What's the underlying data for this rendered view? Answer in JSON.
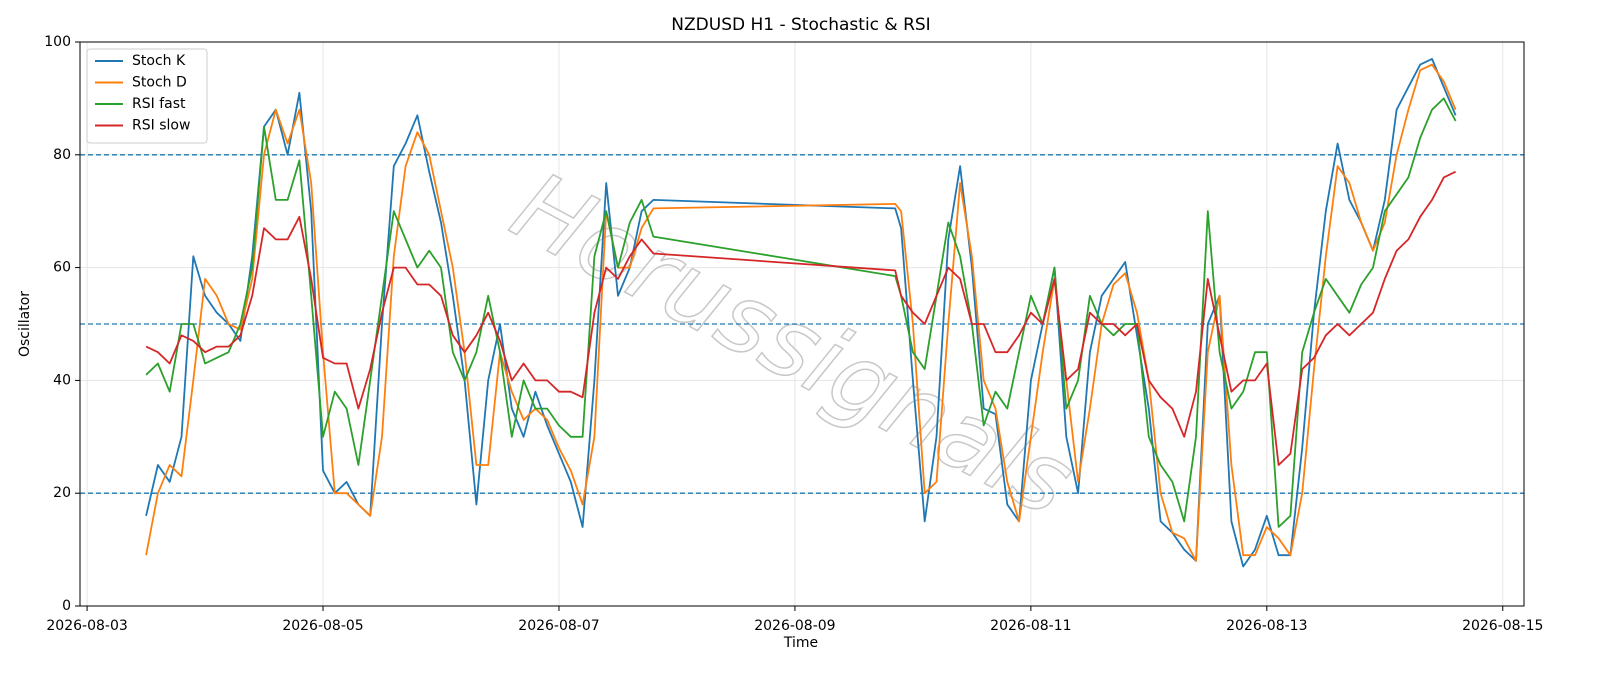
{
  "chart_data": {
    "type": "line",
    "title": "NZDUSD H1 - Stochastic & RSI",
    "xlabel": "Time",
    "ylabel": "Oscillator",
    "watermark": "Horussignals",
    "xlim": [
      -0.06,
      12.18
    ],
    "ylim": [
      0,
      100
    ],
    "xticks": [
      {
        "value": 0,
        "label": "2026-08-03"
      },
      {
        "value": 2,
        "label": "2026-08-05"
      },
      {
        "value": 4,
        "label": "2026-08-07"
      },
      {
        "value": 6,
        "label": "2026-08-09"
      },
      {
        "value": 8,
        "label": "2026-08-11"
      },
      {
        "value": 10,
        "label": "2026-08-13"
      },
      {
        "value": 12,
        "label": "2026-08-15"
      }
    ],
    "yticks": [
      0,
      20,
      40,
      60,
      80,
      100
    ],
    "grid": true,
    "legend": "upper left",
    "hlines": [
      20,
      50,
      80
    ],
    "hline_color": "#1f77b4",
    "x": [
      0.5,
      0.6,
      0.7,
      0.8,
      0.9,
      1.0,
      1.1,
      1.2,
      1.3,
      1.4,
      1.5,
      1.6,
      1.7,
      1.8,
      1.9,
      2.0,
      2.1,
      2.2,
      2.3,
      2.4,
      2.5,
      2.6,
      2.7,
      2.8,
      2.9,
      3.0,
      3.1,
      3.2,
      3.3,
      3.4,
      3.5,
      3.6,
      3.7,
      3.8,
      3.9,
      4.0,
      4.1,
      4.2,
      4.3,
      4.4,
      4.5,
      4.6,
      4.7,
      4.8,
      6.85,
      6.9,
      7.0,
      7.1,
      7.2,
      7.3,
      7.4,
      7.5,
      7.6,
      7.7,
      7.8,
      7.9,
      8.0,
      8.1,
      8.2,
      8.3,
      8.4,
      8.5,
      8.6,
      8.7,
      8.8,
      8.9,
      9.0,
      9.1,
      9.2,
      9.3,
      9.4,
      9.5,
      9.6,
      9.7,
      9.8,
      9.9,
      10.0,
      10.1,
      10.2,
      10.3,
      10.4,
      10.5,
      10.6,
      10.7,
      10.8,
      10.9,
      11.0,
      11.1,
      11.2,
      11.3,
      11.4,
      11.5,
      11.6
    ],
    "series": [
      {
        "name": "Stoch K",
        "color": "#1f77b4",
        "values": [
          16,
          25,
          22,
          30,
          62,
          55,
          52,
          50,
          47,
          62,
          85,
          88,
          80,
          91,
          70,
          24,
          20,
          22,
          18,
          16,
          50,
          78,
          82,
          87,
          77,
          68,
          55,
          40,
          18,
          40,
          50,
          35,
          30,
          38,
          32,
          27,
          22,
          14,
          40,
          75,
          55,
          60,
          70,
          72,
          70.5,
          67,
          40,
          15,
          30,
          65,
          78,
          60,
          35,
          34,
          18,
          15,
          40,
          50,
          60,
          30,
          20,
          45,
          55,
          58,
          61,
          48,
          35,
          15,
          13,
          10,
          8,
          50,
          55,
          15,
          7,
          10,
          16,
          9,
          9,
          28,
          52,
          70,
          82,
          72,
          68,
          63,
          72,
          88,
          92,
          96,
          97,
          92,
          87
        ]
      },
      {
        "name": "Stoch D",
        "color": "#ff7f0e",
        "values": [
          9,
          20,
          25,
          23,
          40,
          58,
          55,
          50,
          49,
          58,
          80,
          88,
          82,
          88,
          75,
          45,
          20,
          20,
          18,
          16,
          30,
          62,
          78,
          84,
          80,
          70,
          60,
          45,
          25,
          25,
          45,
          38,
          33,
          35,
          33,
          28,
          24,
          18,
          30,
          70,
          60,
          60,
          67,
          70.5,
          71.3,
          70,
          50,
          20,
          22,
          50,
          75,
          62,
          40,
          35,
          22,
          15,
          30,
          45,
          58,
          40,
          22,
          35,
          50,
          57,
          59,
          52,
          40,
          20,
          13,
          12,
          8,
          45,
          55,
          25,
          9,
          9,
          14,
          12,
          9,
          20,
          42,
          62,
          78,
          75,
          68,
          63,
          68,
          80,
          88,
          95,
          96,
          93,
          88
        ]
      },
      {
        "name": "RSI fast",
        "color": "#2ca02c",
        "values": [
          41,
          43,
          38,
          50,
          50,
          43,
          44,
          45,
          50,
          60,
          85,
          72,
          72,
          79,
          55,
          30,
          38,
          35,
          25,
          40,
          55,
          70,
          65,
          60,
          63,
          60,
          45,
          40,
          45,
          55,
          45,
          30,
          40,
          35,
          35,
          32,
          30,
          30,
          62,
          70,
          60,
          68,
          72,
          65.5,
          58.5,
          55,
          45,
          42,
          55,
          68,
          62,
          50,
          32,
          38,
          35,
          45,
          55,
          50,
          60,
          35,
          40,
          55,
          50,
          48,
          50,
          50,
          30,
          25,
          22,
          15,
          30,
          70,
          45,
          35,
          38,
          45,
          45,
          14,
          16,
          45,
          52,
          58,
          55,
          52,
          57,
          60,
          70,
          73,
          76,
          83,
          88,
          90,
          86
        ]
      },
      {
        "name": "RSI slow",
        "color": "#d62728",
        "values": [
          46,
          45,
          43,
          48,
          47,
          45,
          46,
          46,
          48,
          55,
          67,
          65,
          65,
          69,
          58,
          44,
          43,
          43,
          35,
          42,
          52,
          60,
          60,
          57,
          57,
          55,
          48,
          45,
          48,
          52,
          47,
          40,
          43,
          40,
          40,
          38,
          38,
          37,
          52,
          60,
          58,
          62,
          65,
          62.5,
          59.5,
          55,
          52,
          50,
          55,
          60,
          58,
          50,
          50,
          45,
          45,
          48,
          52,
          50,
          58,
          40,
          42,
          52,
          50,
          50,
          48,
          50,
          40,
          37,
          35,
          30,
          38,
          58,
          48,
          38,
          40,
          40,
          43,
          25,
          27,
          42,
          44,
          48,
          50,
          48,
          50,
          52,
          58,
          63,
          65,
          69,
          72,
          76,
          77
        ]
      }
    ]
  }
}
